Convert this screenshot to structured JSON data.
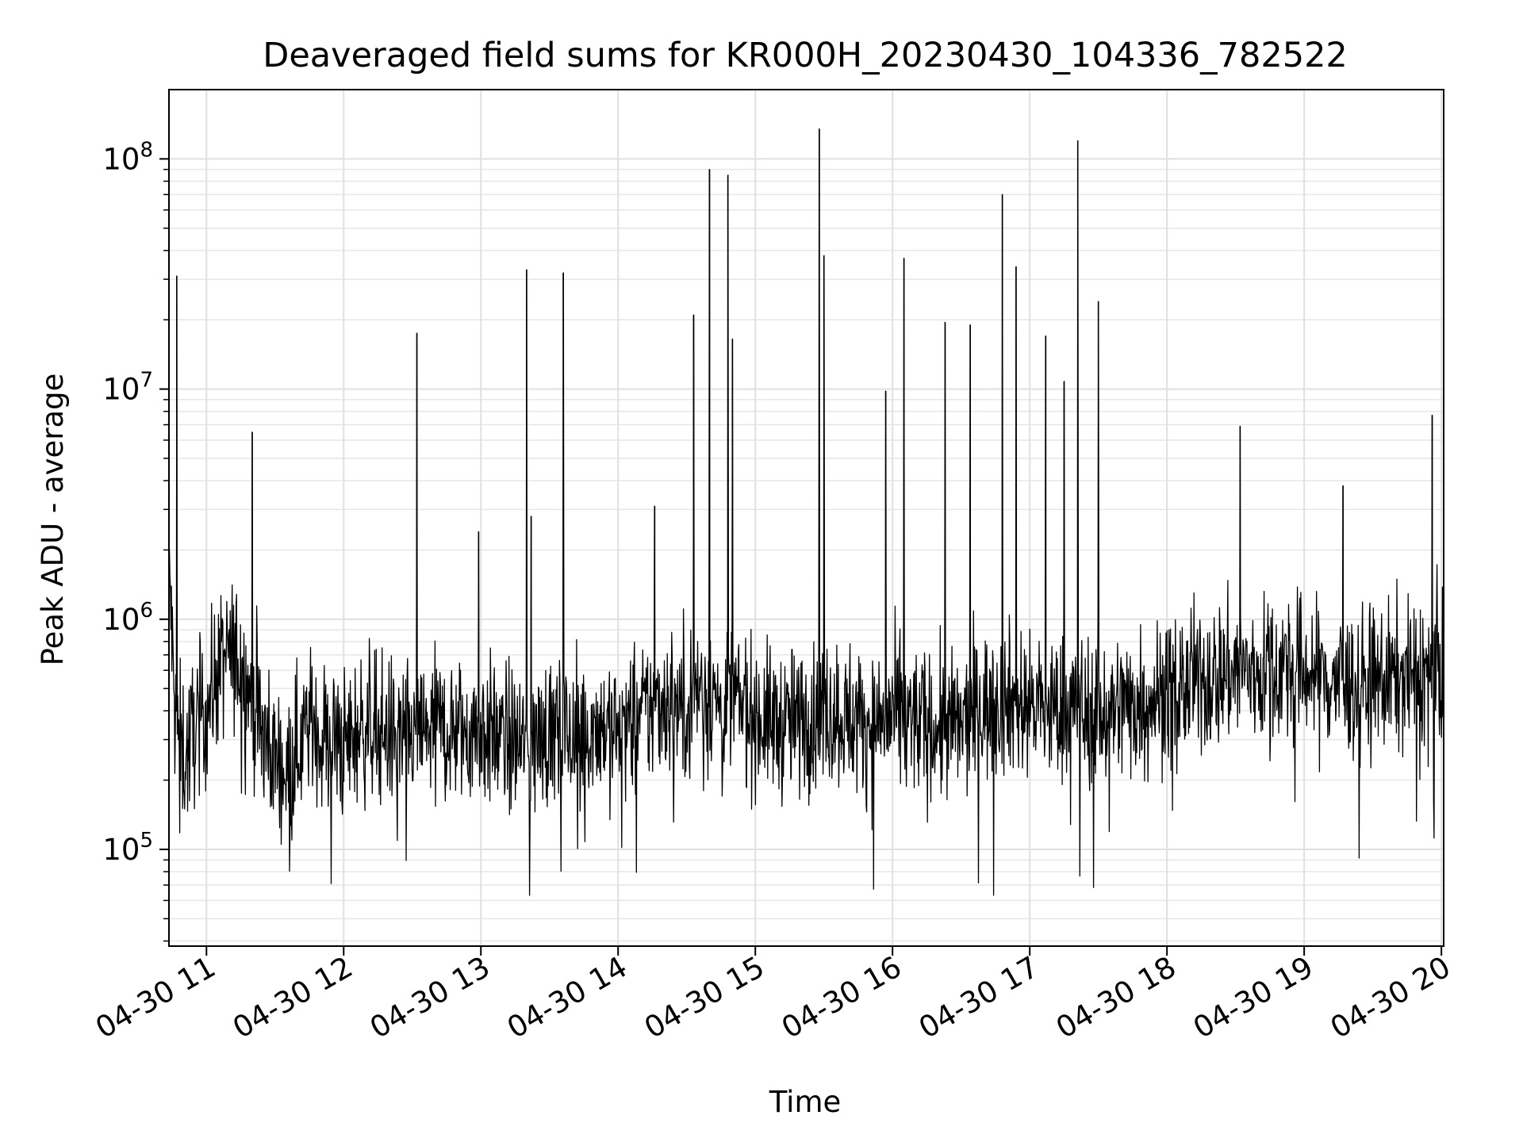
{
  "chart_data": {
    "type": "line",
    "title": "Deaveraged field sums for KR000H_20230430_104336_782522",
    "xlabel": "Time",
    "ylabel": "Peak ADU - average",
    "y_scale": "log",
    "ylim": [
      38000,
      200000000
    ],
    "xlim": [
      "2023-04-30 10:43:36",
      "2023-04-30 20:01:00"
    ],
    "grid": true,
    "x_ticks": [
      {
        "t": "2023-04-30 11:00",
        "label": "04-30 11"
      },
      {
        "t": "2023-04-30 12:00",
        "label": "04-30 12"
      },
      {
        "t": "2023-04-30 13:00",
        "label": "04-30 13"
      },
      {
        "t": "2023-04-30 14:00",
        "label": "04-30 14"
      },
      {
        "t": "2023-04-30 15:00",
        "label": "04-30 15"
      },
      {
        "t": "2023-04-30 16:00",
        "label": "04-30 16"
      },
      {
        "t": "2023-04-30 17:00",
        "label": "04-30 17"
      },
      {
        "t": "2023-04-30 18:00",
        "label": "04-30 18"
      },
      {
        "t": "2023-04-30 19:00",
        "label": "04-30 19"
      },
      {
        "t": "2023-04-30 20:00",
        "label": "04-30 20"
      }
    ],
    "y_ticks": [
      {
        "value": 100000,
        "base": "10",
        "exp": "5"
      },
      {
        "value": 1000000,
        "base": "10",
        "exp": "6"
      },
      {
        "value": 10000000,
        "base": "10",
        "exp": "7"
      },
      {
        "value": 100000000,
        "base": "10",
        "exp": "8"
      }
    ],
    "line_color": "#000000",
    "series": [
      {
        "x": [
          "2023-04-30 10:44",
          "2023-04-30 10:46",
          "2023-04-30 10:48",
          "2023-04-30 10:51",
          "2023-04-30 10:55",
          "2023-04-30 11:00",
          "2023-04-30 11:05",
          "2023-04-30 11:10",
          "2023-04-30 11:15",
          "2023-04-30 11:20",
          "2023-04-30 11:25",
          "2023-04-30 11:30",
          "2023-04-30 11:35",
          "2023-04-30 11:40",
          "2023-04-30 11:45",
          "2023-04-30 11:50",
          "2023-04-30 11:55",
          "2023-04-30 12:00",
          "2023-04-30 12:10",
          "2023-04-30 12:20",
          "2023-04-30 12:30",
          "2023-04-30 12:40",
          "2023-04-30 12:50",
          "2023-04-30 13:00",
          "2023-04-30 13:10",
          "2023-04-30 13:20",
          "2023-04-30 13:30",
          "2023-04-30 13:35",
          "2023-04-30 13:40",
          "2023-04-30 13:50",
          "2023-04-30 14:00",
          "2023-04-30 14:10",
          "2023-04-30 14:20",
          "2023-04-30 14:30",
          "2023-04-30 14:35",
          "2023-04-30 14:40",
          "2023-04-30 14:45",
          "2023-04-30 14:50",
          "2023-04-30 15:00",
          "2023-04-30 15:10",
          "2023-04-30 15:20",
          "2023-04-30 15:30",
          "2023-04-30 15:40",
          "2023-04-30 15:50",
          "2023-04-30 16:00",
          "2023-04-30 16:10",
          "2023-04-30 16:20",
          "2023-04-30 16:30",
          "2023-04-30 16:40",
          "2023-04-30 16:50",
          "2023-04-30 17:00",
          "2023-04-30 17:10",
          "2023-04-30 17:20",
          "2023-04-30 17:30",
          "2023-04-30 17:40",
          "2023-04-30 17:50",
          "2023-04-30 18:00",
          "2023-04-30 18:10",
          "2023-04-30 18:20",
          "2023-04-30 18:30",
          "2023-04-30 18:40",
          "2023-04-30 18:50",
          "2023-04-30 19:00",
          "2023-04-30 19:10",
          "2023-04-30 19:20",
          "2023-04-30 19:30",
          "2023-04-30 19:40",
          "2023-04-30 19:50",
          "2023-04-30 20:00"
        ],
        "y": [
          1500000,
          400000,
          300000,
          250000,
          350000,
          400000,
          600000,
          700000,
          650000,
          450000,
          300000,
          250000,
          220000,
          280000,
          350000,
          320000,
          300000,
          280000,
          350000,
          320000,
          300000,
          350000,
          320000,
          330000,
          300000,
          280000,
          320000,
          340000,
          300000,
          350000,
          330000,
          380000,
          450000,
          420000,
          500000,
          480000,
          420000,
          450000,
          380000,
          350000,
          360000,
          400000,
          380000,
          350000,
          370000,
          360000,
          330000,
          340000,
          420000,
          450000,
          430000,
          400000,
          420000,
          380000,
          420000,
          450000,
          480000,
          520000,
          560000,
          600000,
          580000,
          620000,
          600000,
          550000,
          520000,
          540000,
          560000,
          580000,
          600000
        ]
      }
    ],
    "spikes": [
      {
        "t": "2023-04-30 10:47",
        "value": 31000000
      },
      {
        "t": "2023-04-30 11:20",
        "value": 6500000
      },
      {
        "t": "2023-04-30 12:32",
        "value": 17500000
      },
      {
        "t": "2023-04-30 12:59",
        "value": 2400000
      },
      {
        "t": "2023-04-30 13:20",
        "value": 33000000
      },
      {
        "t": "2023-04-30 13:22",
        "value": 2800000
      },
      {
        "t": "2023-04-30 13:36",
        "value": 32000000
      },
      {
        "t": "2023-04-30 14:16",
        "value": 3100000
      },
      {
        "t": "2023-04-30 14:33",
        "value": 21000000
      },
      {
        "t": "2023-04-30 14:40",
        "value": 90000000
      },
      {
        "t": "2023-04-30 14:48",
        "value": 85000000
      },
      {
        "t": "2023-04-30 14:50",
        "value": 16500000
      },
      {
        "t": "2023-04-30 15:28",
        "value": 135000000
      },
      {
        "t": "2023-04-30 15:30",
        "value": 38000000
      },
      {
        "t": "2023-04-30 15:57",
        "value": 9800000
      },
      {
        "t": "2023-04-30 16:05",
        "value": 37000000
      },
      {
        "t": "2023-04-30 16:23",
        "value": 19500000
      },
      {
        "t": "2023-04-30 16:34",
        "value": 19000000
      },
      {
        "t": "2023-04-30 16:48",
        "value": 70000000
      },
      {
        "t": "2023-04-30 16:54",
        "value": 34000000
      },
      {
        "t": "2023-04-30 17:07",
        "value": 17000000
      },
      {
        "t": "2023-04-30 17:15",
        "value": 10800000
      },
      {
        "t": "2023-04-30 17:21",
        "value": 120000000
      },
      {
        "t": "2023-04-30 17:30",
        "value": 24000000
      },
      {
        "t": "2023-04-30 18:32",
        "value": 6900000
      },
      {
        "t": "2023-04-30 19:17",
        "value": 3800000
      },
      {
        "t": "2023-04-30 19:56",
        "value": 7700000
      }
    ]
  }
}
